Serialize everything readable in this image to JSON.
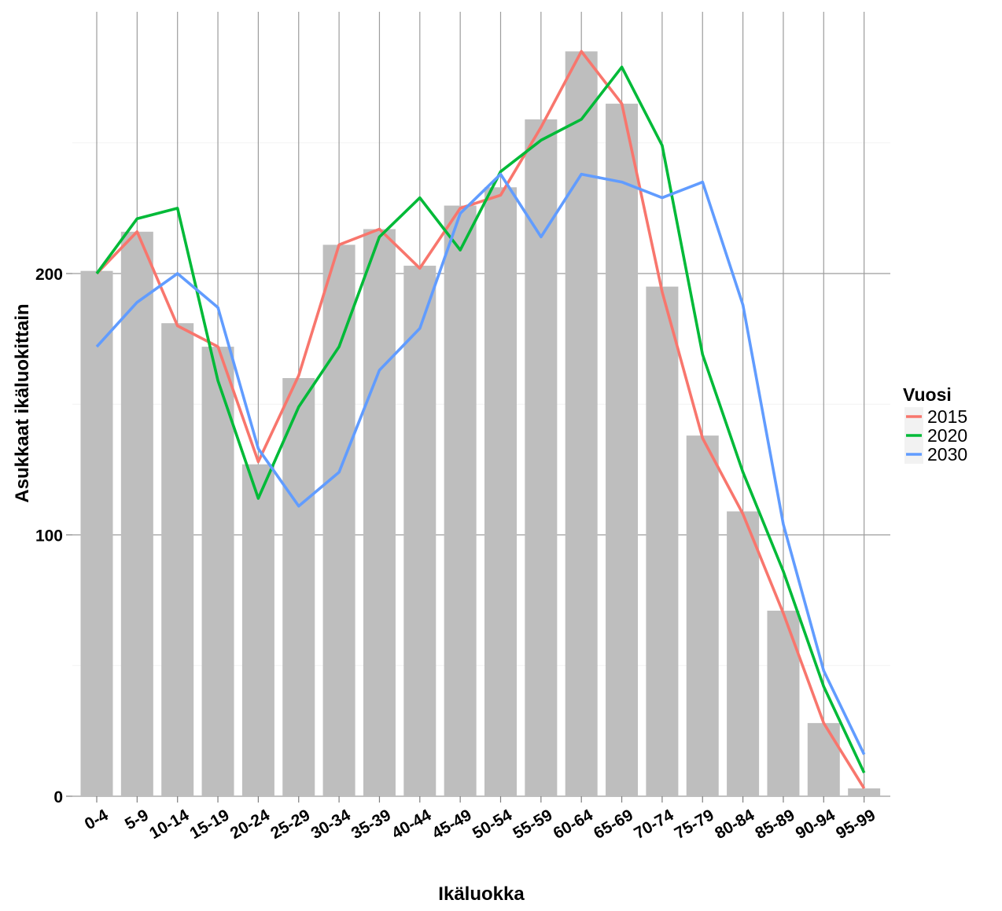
{
  "chart_data": {
    "type": "bar",
    "title": "",
    "xlabel": "Ikäluokka",
    "ylabel": "Asukkaat ikäluokittain",
    "ylim": [
      0,
      290
    ],
    "y_major_ticks": [
      0,
      100,
      200
    ],
    "y_minor_ticks": [
      50,
      150,
      250
    ],
    "grid": true,
    "categories": [
      "0-4",
      "5-9",
      "10-14",
      "15-19",
      "20-24",
      "25-29",
      "30-34",
      "35-39",
      "40-44",
      "45-49",
      "50-54",
      "55-59",
      "60-64",
      "65-69",
      "70-74",
      "75-79",
      "80-84",
      "85-89",
      "90-94",
      "95-99"
    ],
    "bars": {
      "color": "#bebebe",
      "values": [
        201,
        216,
        181,
        172,
        127,
        160,
        211,
        217,
        203,
        226,
        233,
        259,
        285,
        265,
        195,
        138,
        109,
        71,
        28,
        3
      ]
    },
    "legend": {
      "title": "Vuosi",
      "position": "right"
    },
    "series": [
      {
        "name": "2015",
        "color": "#f8766d",
        "values": [
          200,
          216,
          180,
          172,
          128,
          161,
          211,
          217,
          202,
          225,
          230,
          256,
          285,
          265,
          193,
          137,
          108,
          70,
          28,
          3
        ]
      },
      {
        "name": "2020",
        "color": "#00ba38",
        "values": [
          200,
          221,
          225,
          159,
          114,
          149,
          172,
          214,
          229,
          209,
          239,
          251,
          259,
          279,
          249,
          169,
          124,
          86,
          42,
          9
        ]
      },
      {
        "name": "2030",
        "color": "#619cff",
        "values": [
          172,
          189,
          200,
          187,
          133,
          111,
          124,
          163,
          179,
          223,
          238,
          214,
          238,
          235,
          229,
          235,
          188,
          104,
          48,
          16
        ]
      }
    ]
  }
}
